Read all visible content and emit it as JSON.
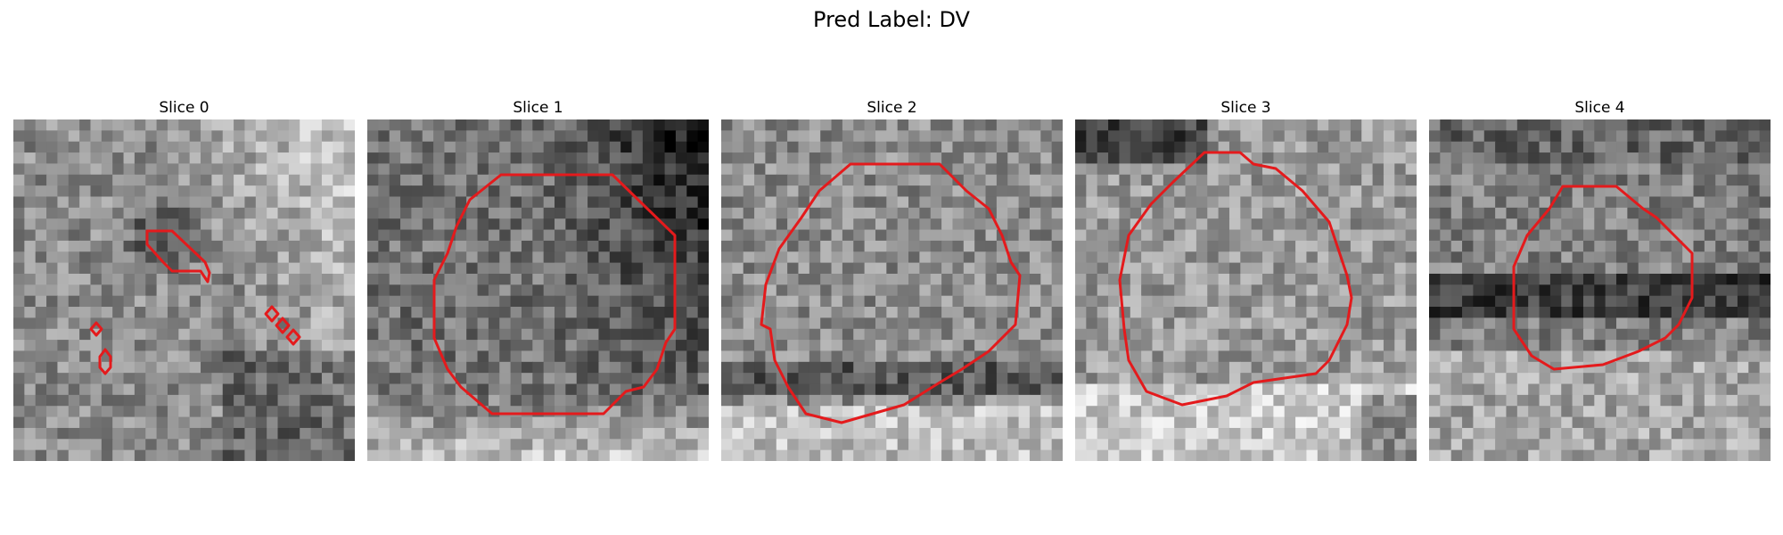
{
  "figure": {
    "title": "Pred Label: DV"
  },
  "panels": [
    {
      "title": "Slice 0"
    },
    {
      "title": "Slice 1"
    },
    {
      "title": "Slice 2"
    },
    {
      "title": "Slice 3"
    },
    {
      "title": "Slice 4"
    }
  ],
  "colors": {
    "contour": "#e41a1c",
    "background": "#ffffff"
  }
}
